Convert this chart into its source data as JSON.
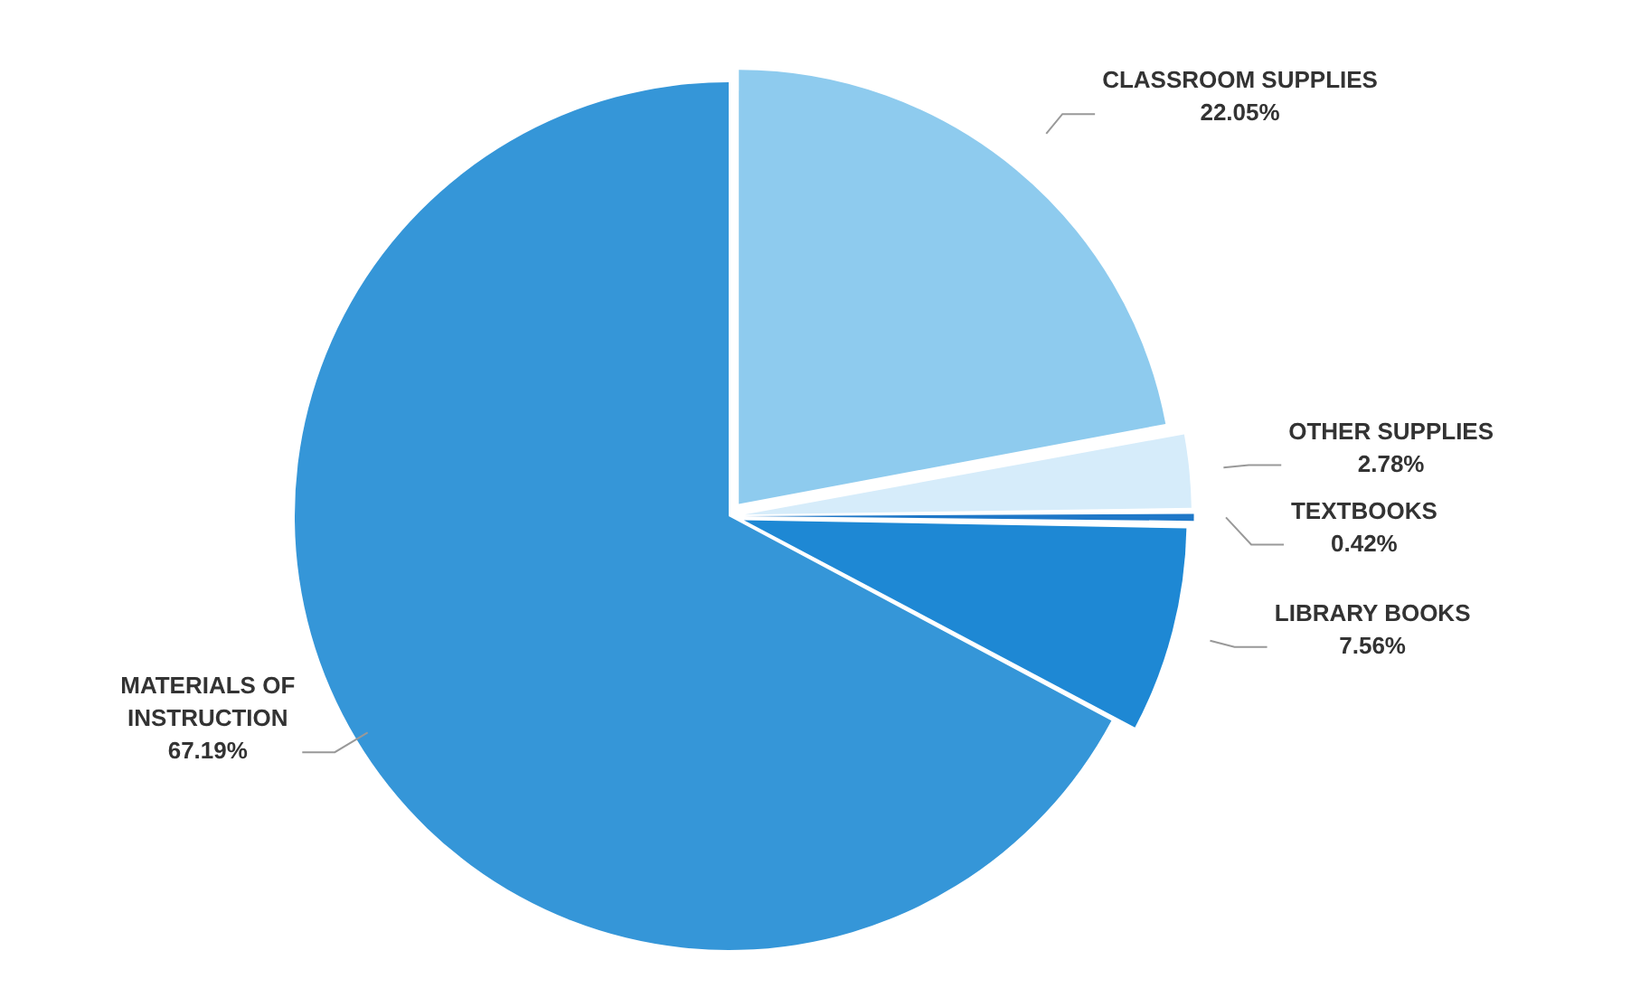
{
  "chart_data": {
    "type": "pie",
    "categories": [
      "CLASSROOM SUPPLIES",
      "OTHER SUPPLIES",
      "TEXTBOOKS",
      "LIBRARY BOOKS",
      "MATERIALS OF INSTRUCTION"
    ],
    "values": [
      22.05,
      2.78,
      0.42,
      7.56,
      67.19
    ],
    "colors": [
      "#8ecbee",
      "#d6ecfa",
      "#1f78c8",
      "#1e88d4",
      "#3596d8"
    ],
    "value_labels": [
      "22.05%",
      "2.78%",
      "0.42%",
      "7.56%",
      "67.19%"
    ],
    "legend": false
  }
}
